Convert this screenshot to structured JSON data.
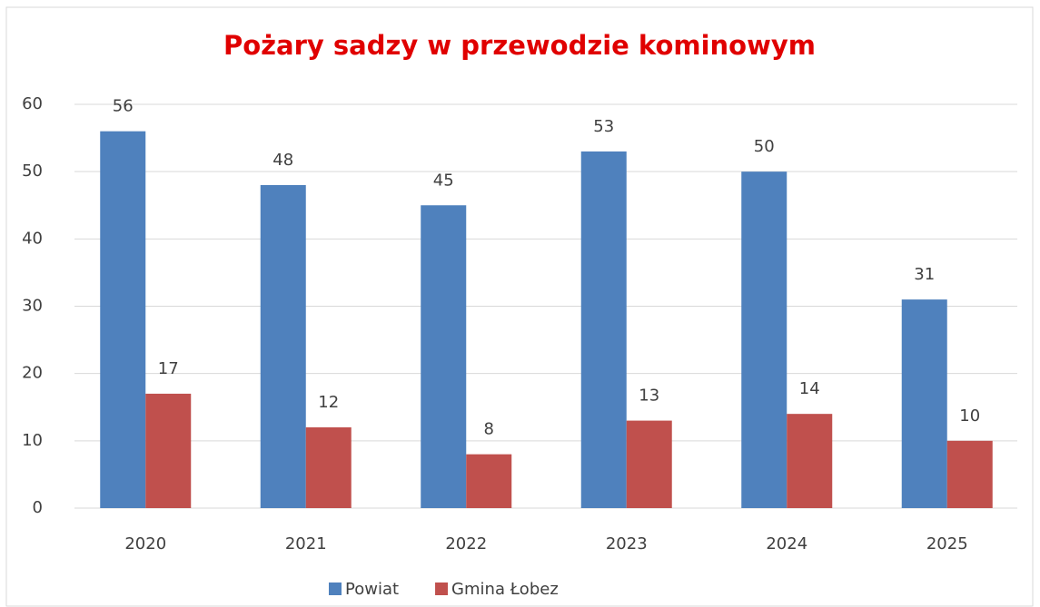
{
  "chart_data": {
    "type": "bar",
    "title": "Pożary sadzy w przewodzie kominowym",
    "categories": [
      "2020",
      "2021",
      "2022",
      "2023",
      "2024",
      "2025"
    ],
    "series": [
      {
        "name": "Powiat",
        "color": "#4f81bd",
        "values": [
          56,
          48,
          45,
          53,
          50,
          31
        ]
      },
      {
        "name": "Gmina Łobez",
        "color": "#c0504d",
        "values": [
          17,
          12,
          8,
          13,
          14,
          10
        ]
      }
    ],
    "ylim": [
      0,
      60
    ],
    "yticks": [
      0,
      10,
      20,
      30,
      40,
      50,
      60
    ],
    "grid": true,
    "legend": "bottom"
  }
}
